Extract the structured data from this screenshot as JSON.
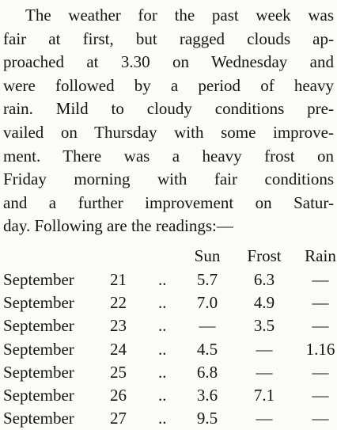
{
  "paragraph": {
    "lines": [
      "The weather for the past week was",
      "fair at first, but ragged clouds ap-",
      "proached at 3.30 on Wednesday and",
      "were followed by a period of heavy",
      "rain. Mild to cloudy conditions pre-",
      "vailed on Thursday with some improve-",
      "ment. There was a heavy frost on",
      "Friday morning with fair conditions",
      "and a further improvement on Satur-",
      "day. Following are the readings:—"
    ]
  },
  "table": {
    "header": [
      "Sun",
      "Frost",
      "Rain"
    ],
    "rows": [
      [
        "September",
        "21",
        "..",
        "5.7",
        "6.3",
        "—"
      ],
      [
        "September",
        "22",
        "..",
        "7.0",
        "4.9",
        "—"
      ],
      [
        "September",
        "23",
        "..",
        "—",
        "3.5",
        "—"
      ],
      [
        "September",
        "24",
        "..",
        "4.5",
        "—",
        "1.16"
      ],
      [
        "September",
        "25",
        "..",
        "6.8",
        "—",
        "—"
      ],
      [
        "September",
        "26",
        "..",
        "3.6",
        "7.1",
        "—"
      ],
      [
        "September",
        "27",
        "..",
        "9.5",
        "—",
        "—"
      ]
    ]
  }
}
